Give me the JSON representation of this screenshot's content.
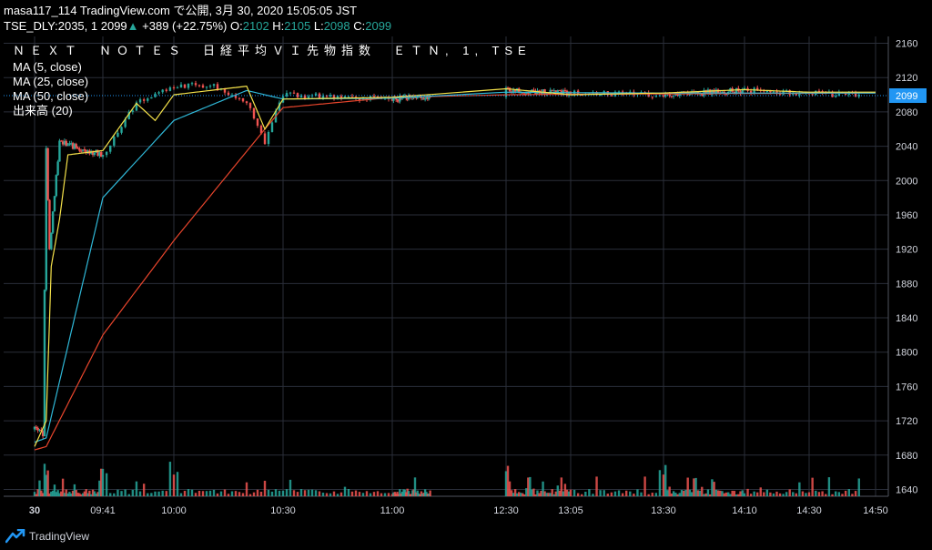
{
  "header": {
    "line1": "masa117_114 TradingView.com で公開, 3月 30, 2020 15:05:05 JST",
    "symbol": "TSE_DLY:2035, 1",
    "last": "2099",
    "change_arrow": "▲",
    "change": "+389 (+22.75%)",
    "o_label": "O:",
    "o_value": "2102",
    "h_label": "H:",
    "h_value": "2105",
    "l_label": "L:",
    "l_value": "2098",
    "c_label": "C:",
    "c_value": "2099"
  },
  "overlay": {
    "title": "ＮＥＸＴ　ＮＯＴＥＳ　日経平均ＶＩ先物指数　ＥＴＮ, 1, TSE",
    "indicators": [
      "MA (5, close)",
      "MA (25, close)",
      "MA (50, close)",
      "出来高 (20)"
    ]
  },
  "footer": {
    "brand": "TradingView",
    "logo_icon": "tradingview-logo-icon"
  },
  "colors": {
    "up": "#26a69a",
    "down": "#ef5350",
    "ma5": "#f5e24a",
    "ma25": "#2fb8d8",
    "ma50": "#e8452c",
    "grid": "#2a2e39",
    "axis_text": "#d1d4dc",
    "price_tag": "#2196f3"
  },
  "chart_data": {
    "type": "candlestick",
    "title": "ＮＥＸＴ　ＮＯＴＥＳ　日経平均ＶＩ先物指数　ＥＴＮ, 1, TSE",
    "y_ticks": [
      1640,
      1680,
      1720,
      1760,
      1800,
      1840,
      1880,
      1920,
      1960,
      2000,
      2040,
      2080,
      2120,
      2160
    ],
    "ylim": [
      1632,
      2168
    ],
    "x_ticks": [
      "30",
      "09:41",
      "10:00",
      "10:30",
      "11:00",
      "12:30",
      "13:05",
      "13:30",
      "14:10",
      "14:30",
      "14:50"
    ],
    "last_price": "2099",
    "price_key_points": [
      {
        "t": "09:00",
        "price": 1710
      },
      {
        "t": "09:05",
        "price": 1705
      },
      {
        "t": "09:07",
        "price": 2035
      },
      {
        "t": "09:09",
        "price": 1920
      },
      {
        "t": "09:15",
        "price": 2045
      },
      {
        "t": "09:41",
        "price": 2030
      },
      {
        "t": "09:50",
        "price": 2090
      },
      {
        "t": "10:00",
        "price": 2110
      },
      {
        "t": "10:10",
        "price": 2112
      },
      {
        "t": "10:20",
        "price": 2090
      },
      {
        "t": "10:25",
        "price": 2045
      },
      {
        "t": "10:30",
        "price": 2100
      },
      {
        "t": "11:00",
        "price": 2095
      },
      {
        "t": "12:30",
        "price": 2105
      },
      {
        "t": "13:05",
        "price": 2102
      },
      {
        "t": "13:30",
        "price": 2100
      },
      {
        "t": "14:10",
        "price": 2105
      },
      {
        "t": "14:30",
        "price": 2102
      },
      {
        "t": "14:45",
        "price": 2099
      }
    ],
    "ma5_key_points": [
      {
        "t": "09:00",
        "price": 1690
      },
      {
        "t": "09:07",
        "price": 1720
      },
      {
        "t": "09:10",
        "price": 1900
      },
      {
        "t": "09:15",
        "price": 1955
      },
      {
        "t": "09:20",
        "price": 2030
      },
      {
        "t": "09:41",
        "price": 2035
      },
      {
        "t": "09:50",
        "price": 2090
      },
      {
        "t": "09:55",
        "price": 2070
      },
      {
        "t": "10:00",
        "price": 2100
      },
      {
        "t": "10:20",
        "price": 2110
      },
      {
        "t": "10:25",
        "price": 2060
      },
      {
        "t": "10:30",
        "price": 2095
      },
      {
        "t": "11:00",
        "price": 2097
      },
      {
        "t": "12:30",
        "price": 2107
      },
      {
        "t": "13:05",
        "price": 2100
      },
      {
        "t": "13:30",
        "price": 2102
      },
      {
        "t": "14:10",
        "price": 2106
      },
      {
        "t": "14:30",
        "price": 2103
      },
      {
        "t": "14:50",
        "price": 2103
      }
    ],
    "ma25_key_points": [
      {
        "t": "09:00",
        "price": 1695
      },
      {
        "t": "09:07",
        "price": 1700
      },
      {
        "t": "09:41",
        "price": 1980
      },
      {
        "t": "10:00",
        "price": 2070
      },
      {
        "t": "10:20",
        "price": 2105
      },
      {
        "t": "10:30",
        "price": 2095
      },
      {
        "t": "11:00",
        "price": 2096
      },
      {
        "t": "12:30",
        "price": 2103
      },
      {
        "t": "13:30",
        "price": 2102
      },
      {
        "t": "14:50",
        "price": 2102
      }
    ],
    "ma50_key_points": [
      {
        "t": "09:00",
        "price": 1686
      },
      {
        "t": "09:07",
        "price": 1690
      },
      {
        "t": "09:41",
        "price": 1820
      },
      {
        "t": "10:00",
        "price": 1930
      },
      {
        "t": "10:25",
        "price": 2060
      },
      {
        "t": "10:30",
        "price": 2085
      },
      {
        "t": "11:00",
        "price": 2097
      },
      {
        "t": "12:30",
        "price": 2100
      },
      {
        "t": "13:30",
        "price": 2101
      },
      {
        "t": "14:50",
        "price": 2102
      }
    ],
    "volume_peak_times": [
      "09:07",
      "09:41",
      "10:00",
      "12:30",
      "13:30"
    ]
  }
}
